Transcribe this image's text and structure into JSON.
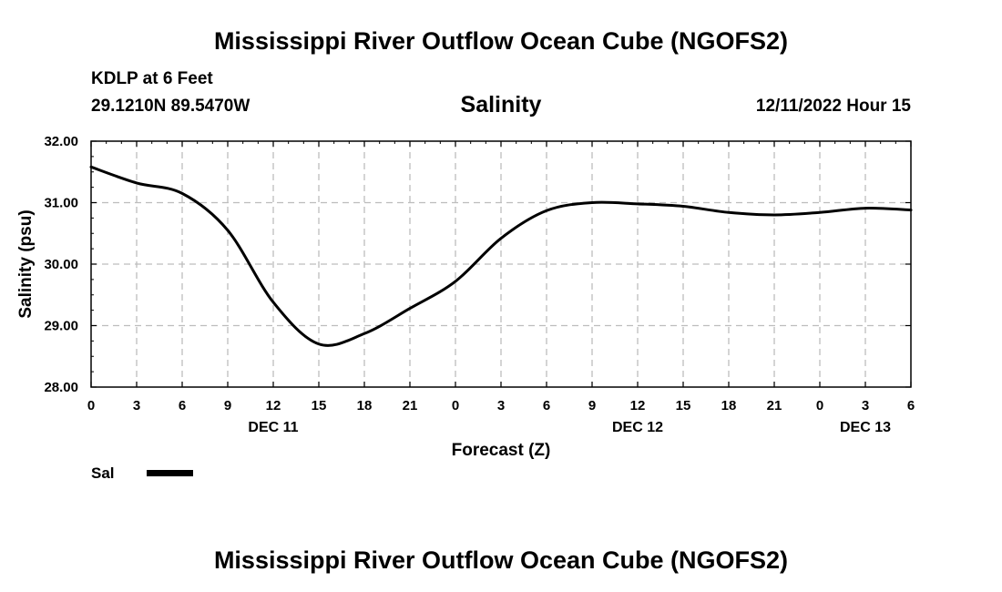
{
  "page": {
    "main_title": "Mississippi River Outflow Ocean Cube (NGOFS2)",
    "footer_title": "Mississippi River Outflow Ocean Cube (NGOFS2)",
    "station": "KDLP at 6 Feet",
    "coords": "29.1210N  89.5470W",
    "datetime": "12/11/2022 Hour 15",
    "legend_label": "Sal",
    "legend_color": "#000000"
  },
  "chart_data": {
    "type": "line",
    "title": "Salinity",
    "xlabel": "Forecast (Z)",
    "ylabel": "Salinity (psu)",
    "ylim": [
      28.0,
      32.0
    ],
    "xlim": [
      0,
      54
    ],
    "grid": true,
    "y_ticks": [
      28.0,
      29.0,
      30.0,
      31.0,
      32.0
    ],
    "y_tick_labels": [
      "28.00",
      "29.00",
      "30.00",
      "31.00",
      "32.00"
    ],
    "x_ticks": [
      0,
      3,
      6,
      9,
      12,
      15,
      18,
      21,
      24,
      27,
      30,
      33,
      36,
      39,
      42,
      45,
      48,
      51,
      54
    ],
    "x_tick_labels": [
      "0",
      "3",
      "6",
      "9",
      "12",
      "15",
      "18",
      "21",
      "0",
      "3",
      "6",
      "9",
      "12",
      "15",
      "18",
      "21",
      "0",
      "3",
      "6"
    ],
    "date_labels": [
      {
        "hour": 12,
        "label": "DEC 11"
      },
      {
        "hour": 36,
        "label": "DEC 12"
      },
      {
        "hour": 51,
        "label": "DEC 13"
      }
    ],
    "series": [
      {
        "name": "Sal",
        "color": "#000000",
        "x": [
          0,
          3,
          6,
          9,
          12,
          15,
          18,
          21,
          24,
          27,
          30,
          33,
          36,
          39,
          42,
          45,
          48,
          51,
          54
        ],
        "y": [
          31.58,
          31.32,
          31.15,
          30.55,
          29.38,
          28.7,
          28.87,
          29.28,
          29.72,
          30.42,
          30.87,
          31.0,
          30.98,
          30.94,
          30.84,
          30.8,
          30.84,
          30.91,
          30.88
        ]
      }
    ]
  }
}
